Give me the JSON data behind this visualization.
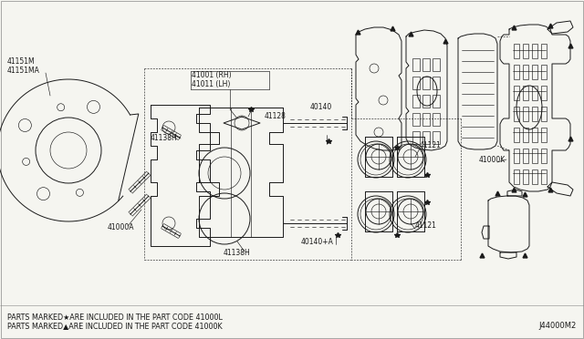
{
  "bg_color": "#f5f5f0",
  "line_color": "#1a1a1a",
  "fig_width": 6.4,
  "fig_height": 3.72,
  "dpi": 100,
  "footer_line1": "PARTS MARKED★ARE INCLUDED IN THE PART CODE 41000L",
  "footer_line2": "PARTS MARKED▲ARE INCLUDED IN THE PART CODE 41000K",
  "diagram_id": "J44000M2",
  "font_size_label": 5.5,
  "font_size_footer": 5.8,
  "font_size_id": 6.0,
  "border_color": "#888888"
}
